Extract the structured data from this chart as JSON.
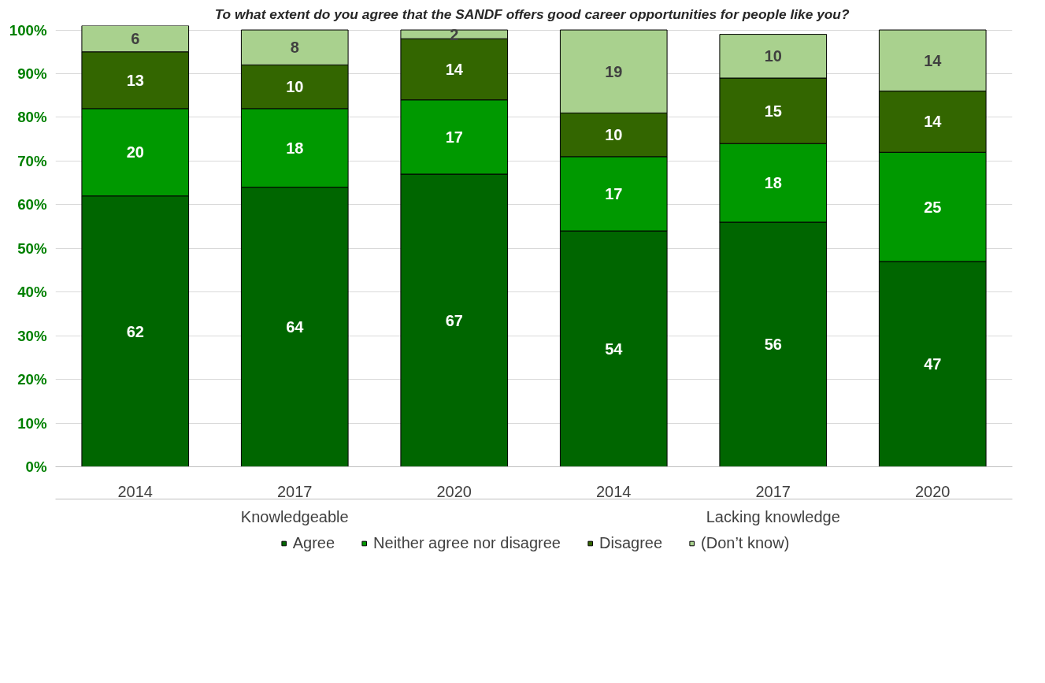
{
  "chart_data": {
    "type": "bar",
    "stacked": true,
    "title": "To what extent do you agree  that the SANDF offers good career opportunities for people like you?",
    "categories": [
      "2014",
      "2017",
      "2020",
      "2014",
      "2017",
      "2020"
    ],
    "annotations": [
      "Knowledgeable",
      "Lacking knowledge"
    ],
    "series": [
      {
        "name": "Agree",
        "color": "#006600",
        "values": [
          62,
          64,
          67,
          54,
          56,
          47
        ]
      },
      {
        "name": "Neither agree nor disagree",
        "color": "#009900",
        "values": [
          20,
          18,
          17,
          17,
          18,
          25
        ]
      },
      {
        "name": "Disagree",
        "color": "#336600",
        "values": [
          13,
          10,
          14,
          10,
          15,
          14
        ]
      },
      {
        "name": "(Don’t know)",
        "color": "#a9d18e",
        "values": [
          6,
          8,
          2,
          19,
          10,
          14
        ]
      }
    ],
    "ylim": [
      0,
      101
    ],
    "yticks": [
      {
        "value": 0,
        "label": "0%"
      },
      {
        "value": 10,
        "label": "10%"
      },
      {
        "value": 20,
        "label": "20%"
      },
      {
        "value": 30,
        "label": "30%"
      },
      {
        "value": 40,
        "label": "40%"
      },
      {
        "value": 50,
        "label": "50%"
      },
      {
        "value": 60,
        "label": "60%"
      },
      {
        "value": 70,
        "label": "70%"
      },
      {
        "value": 80,
        "label": "80%"
      },
      {
        "value": 90,
        "label": "90%"
      },
      {
        "value": 100,
        "label": "100%"
      }
    ],
    "grid": "y",
    "legend": "bottom",
    "data_labels": true
  }
}
